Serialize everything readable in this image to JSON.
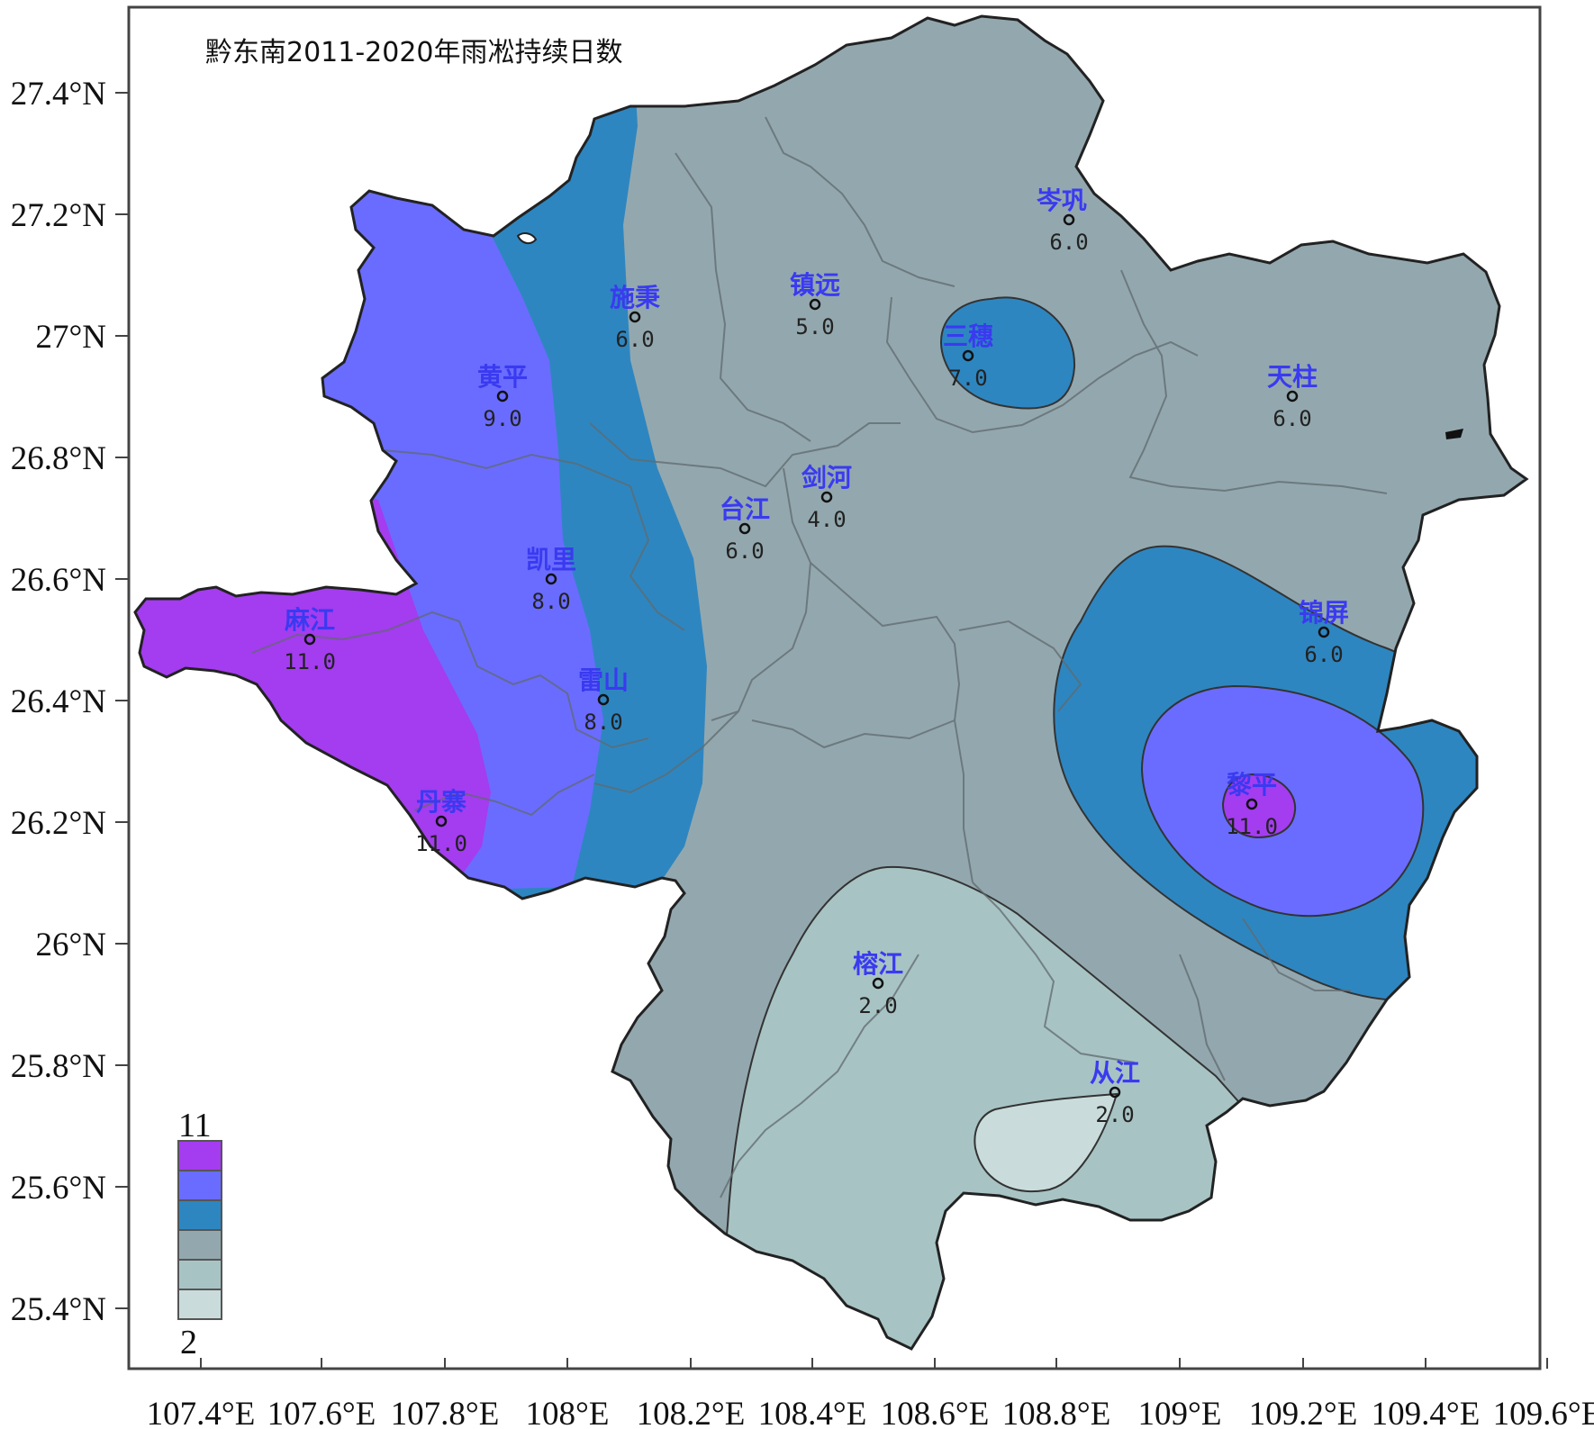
{
  "title": "黔东南2011-2020年雨凇持续日数",
  "colors": {
    "c11": "#a43cf0",
    "c9": "#6a6cff",
    "c7": "#2e86c0",
    "c5": "#93a8ae",
    "c3": "#a8c3c4",
    "c2": "#c9dcdb"
  },
  "legend": {
    "max_label": "11",
    "min_label": "2"
  },
  "x_axis": {
    "ticks": [
      "107.4°E",
      "107.6°E",
      "107.8°E",
      "108°E",
      "108.2°E",
      "108.4°E",
      "108.6°E",
      "108.8°E",
      "109°E",
      "109.2°E",
      "109.4°E",
      "109.6°E"
    ]
  },
  "y_axis": {
    "ticks": [
      "27.4°N",
      "27.2°N",
      "27°N",
      "26.8°N",
      "26.6°N",
      "26.4°N",
      "26.2°N",
      "26°N",
      "25.8°N",
      "25.6°N",
      "25.4°N"
    ]
  },
  "stations": [
    {
      "name": "岑巩",
      "value": "6.0"
    },
    {
      "name": "施秉",
      "value": "6.0"
    },
    {
      "name": "镇远",
      "value": "5.0"
    },
    {
      "name": "三穗",
      "value": "7.0"
    },
    {
      "name": "黄平",
      "value": "9.0"
    },
    {
      "name": "天柱",
      "value": "6.0"
    },
    {
      "name": "剑河",
      "value": "4.0"
    },
    {
      "name": "台江",
      "value": "6.0"
    },
    {
      "name": "凯里",
      "value": "8.0"
    },
    {
      "name": "锦屏",
      "value": "6.0"
    },
    {
      "name": "麻江",
      "value": "11.0"
    },
    {
      "name": "雷山",
      "value": "8.0"
    },
    {
      "name": "黎平",
      "value": "11.0"
    },
    {
      "name": "丹寨",
      "value": "11.0"
    },
    {
      "name": "榕江",
      "value": "2.0"
    },
    {
      "name": "从江",
      "value": "2.0"
    }
  ]
}
